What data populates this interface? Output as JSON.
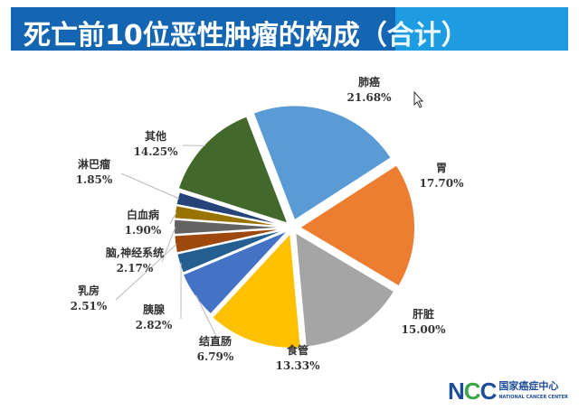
{
  "header": {
    "title_main": "死亡前10位恶性肿瘤的构成（",
    "title_highlight": "合计",
    "title_end": "）"
  },
  "logo": {
    "mark": "NCC",
    "cn": "国家癌症中心",
    "en": "NATIONAL CANCER CENTER"
  },
  "chart_data": {
    "type": "pie",
    "title": "死亡前10位恶性肿瘤的构成（合计）",
    "categories": [
      "肺癌",
      "胃",
      "肝脏",
      "食管",
      "结直肠",
      "胰腺",
      "乳房",
      "脑,神经系统",
      "白血病",
      "淋巴瘤",
      "其他"
    ],
    "values": [
      21.68,
      17.7,
      15.0,
      13.33,
      6.79,
      2.82,
      2.51,
      2.17,
      1.9,
      1.85,
      14.25
    ],
    "labels": [
      "21.68%",
      "17.70%",
      "15.00%",
      "13.33%",
      "6.79%",
      "2.82%",
      "2.51%",
      "2.17%",
      "1.90%",
      "1.85%",
      "14.25%"
    ],
    "colors": [
      "#5b9bd5",
      "#ed7d31",
      "#a5a5a5",
      "#ffc000",
      "#4472c4",
      "#255e91",
      "#9e480e",
      "#636363",
      "#997300",
      "#264478",
      "#43682b"
    ],
    "unit": "%"
  }
}
